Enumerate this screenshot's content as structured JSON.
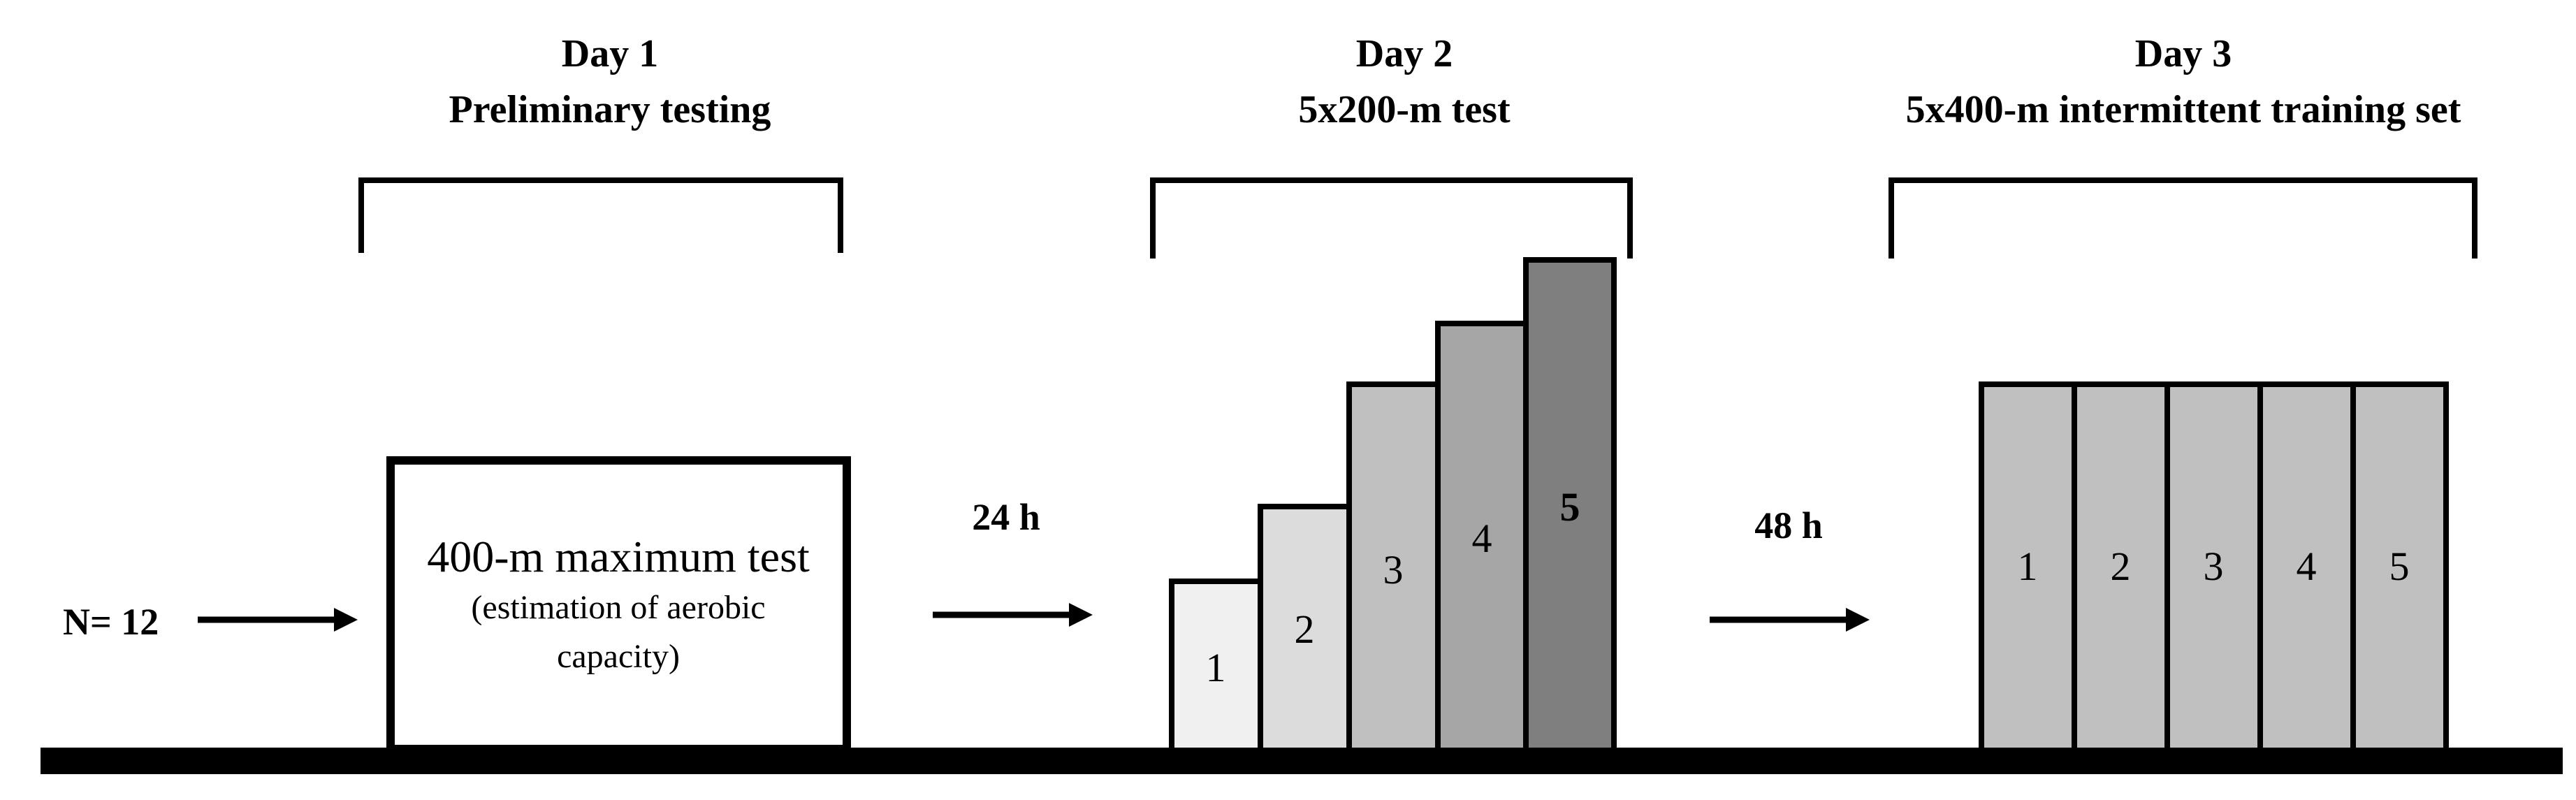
{
  "participants": {
    "label": "N= 12"
  },
  "day1": {
    "title": "Day 1",
    "subtitle": "Preliminary testing",
    "box_title": "400-m maximum test",
    "box_note_line1": "(estimation of aerobic",
    "box_note_line2": "capacity)"
  },
  "gap1": {
    "label": "24 h"
  },
  "day2": {
    "title": "Day 2",
    "subtitle": "5x200-m test",
    "steps": [
      "1",
      "2",
      "3",
      "4",
      "5"
    ],
    "step_colors": [
      "#f0f0f0",
      "#dcdcdc",
      "#c0c0c0",
      "#a6a6a6",
      "#7f7f7f"
    ]
  },
  "gap2": {
    "label": "48 h"
  },
  "day3": {
    "title": "Day 3",
    "subtitle": "5x400-m intermittent training set",
    "reps": [
      "1",
      "2",
      "3",
      "4",
      "5"
    ],
    "rep_color": "#c0c0c0"
  },
  "colors": {
    "line": "#000000",
    "background": "#ffffff"
  }
}
